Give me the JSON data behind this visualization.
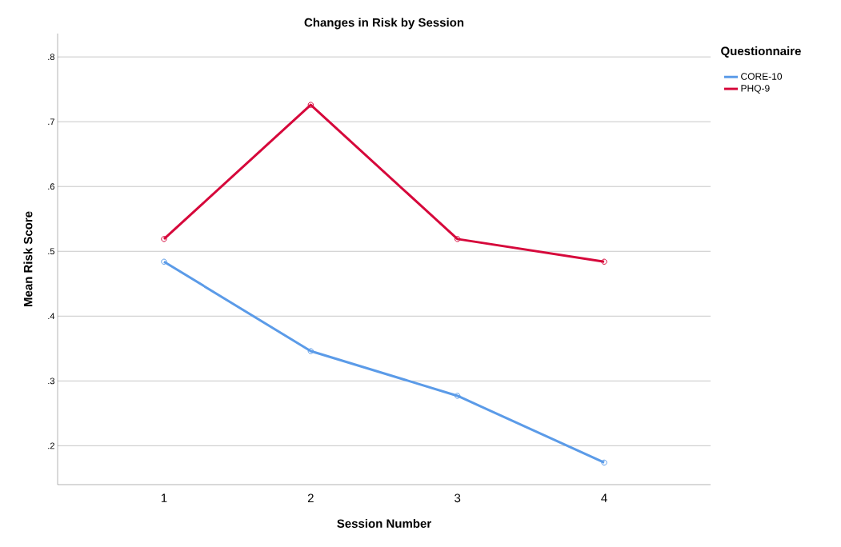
{
  "chart_data": {
    "type": "line",
    "title": "Changes in Risk by Session",
    "xlabel": "Session Number",
    "ylabel": "Mean Risk Score",
    "legend_title": "Questionnaire",
    "categories": [
      "1",
      "2",
      "3",
      "4"
    ],
    "series": [
      {
        "name": "CORE-10",
        "color": "#5b9be8",
        "values": [
          0.484,
          0.346,
          0.277,
          0.174
        ]
      },
      {
        "name": "PHQ-9",
        "color": "#d6083b",
        "values": [
          0.519,
          0.726,
          0.519,
          0.484
        ]
      }
    ],
    "ylim": [
      0.14,
      0.836
    ],
    "yticks": [
      {
        "value": 0.2,
        "label": ".2"
      },
      {
        "value": 0.3,
        "label": ".3"
      },
      {
        "value": 0.4,
        "label": ".4"
      },
      {
        "value": 0.5,
        "label": ".5"
      },
      {
        "value": 0.6,
        "label": ".6"
      },
      {
        "value": 0.7,
        "label": ".7"
      },
      {
        "value": 0.8,
        "label": ".8"
      }
    ],
    "grid": "y",
    "legend": "top right",
    "marker": "circle"
  }
}
